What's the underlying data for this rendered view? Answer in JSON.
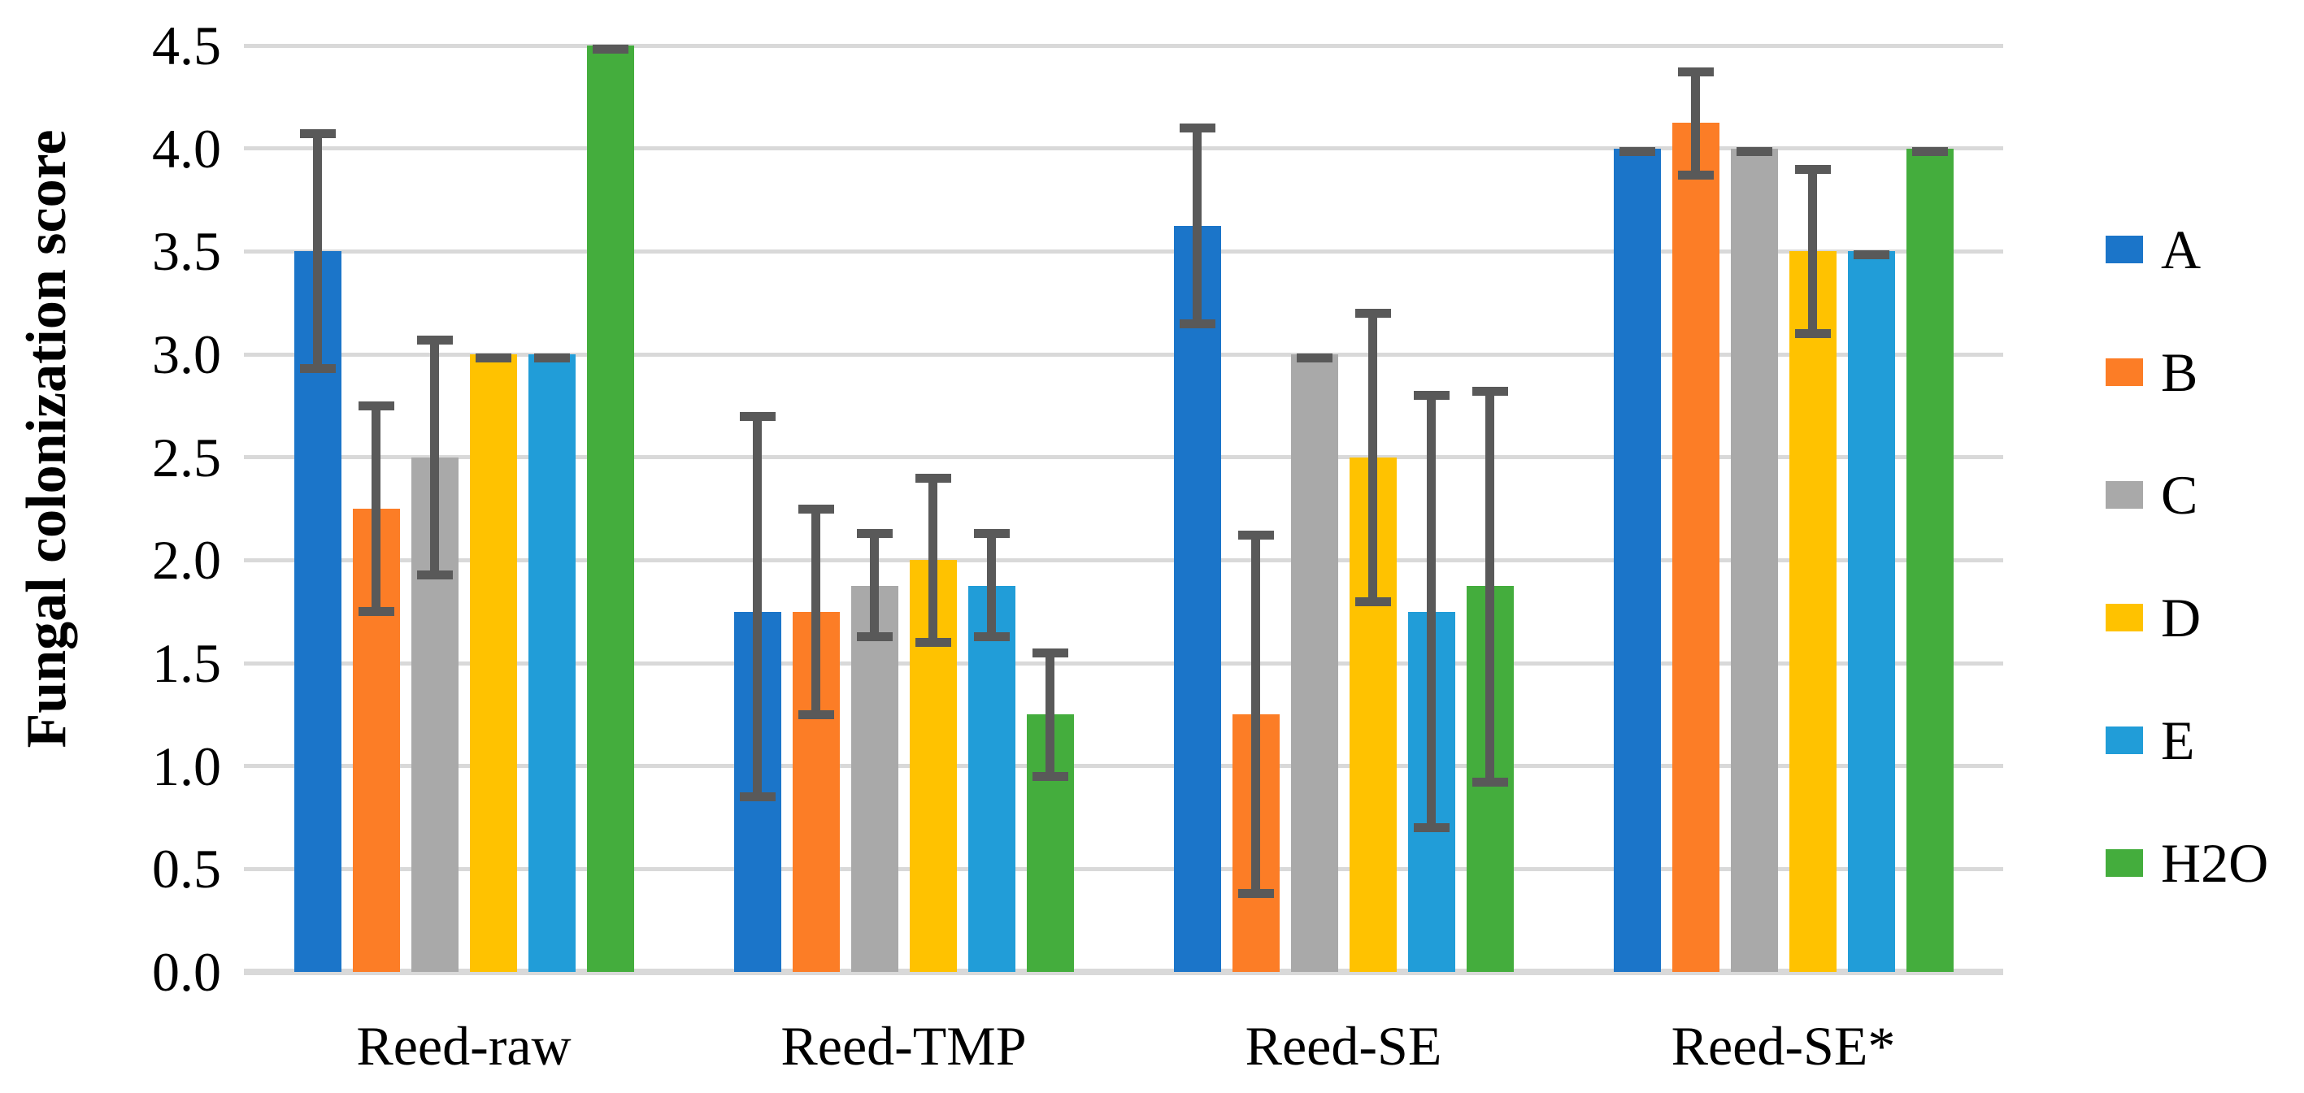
{
  "chart_data": {
    "type": "bar",
    "title": "",
    "ylabel": "Fungal colonization score",
    "xlabel": "",
    "ylim": [
      0,
      4.5
    ],
    "y_tick_labels": [
      "0.0",
      "0.5",
      "1.0",
      "1.5",
      "2.0",
      "2.5",
      "3.0",
      "3.5",
      "4.0",
      "4.5"
    ],
    "categories": [
      "Reed-raw",
      "Reed-TMP",
      "Reed-SE",
      "Reed-SE*"
    ],
    "grid": true,
    "legend_position": "right",
    "gridline_color": "#D9D9D9",
    "error_bar_color": "#595959",
    "series": [
      {
        "name": "A",
        "color": "#1B75C9",
        "values": [
          3.5,
          1.75,
          3.625,
          4.0
        ],
        "error_low": [
          2.93,
          0.85,
          3.15,
          4.0
        ],
        "error_high": [
          4.07,
          2.7,
          4.1,
          4.0
        ]
      },
      {
        "name": "B",
        "color": "#FC7D26",
        "values": [
          2.25,
          1.75,
          1.25,
          4.125
        ],
        "error_low": [
          1.75,
          1.25,
          0.38,
          3.87
        ],
        "error_high": [
          2.75,
          2.25,
          2.12,
          4.37
        ]
      },
      {
        "name": "C",
        "color": "#A9A9A9",
        "values": [
          2.5,
          1.875,
          3.0,
          4.0
        ],
        "error_low": [
          1.93,
          1.63,
          3.0,
          4.0
        ],
        "error_high": [
          3.07,
          2.13,
          3.0,
          4.0
        ]
      },
      {
        "name": "D",
        "color": "#FFC200",
        "values": [
          3.0,
          2.0,
          2.5,
          3.5
        ],
        "error_low": [
          3.0,
          1.6,
          1.8,
          3.1
        ],
        "error_high": [
          3.0,
          2.4,
          3.2,
          3.9
        ]
      },
      {
        "name": "E",
        "color": "#219DD8",
        "values": [
          3.0,
          1.875,
          1.75,
          3.5
        ],
        "error_low": [
          3.0,
          1.63,
          0.7,
          3.5
        ],
        "error_high": [
          3.0,
          2.13,
          2.8,
          3.5
        ]
      },
      {
        "name": "H2O",
        "color": "#44AD3D",
        "values": [
          4.5,
          1.25,
          1.875,
          4.0
        ],
        "error_low": [
          4.5,
          0.95,
          0.92,
          4.0
        ],
        "error_high": [
          4.5,
          1.55,
          2.82,
          4.0
        ]
      }
    ]
  }
}
